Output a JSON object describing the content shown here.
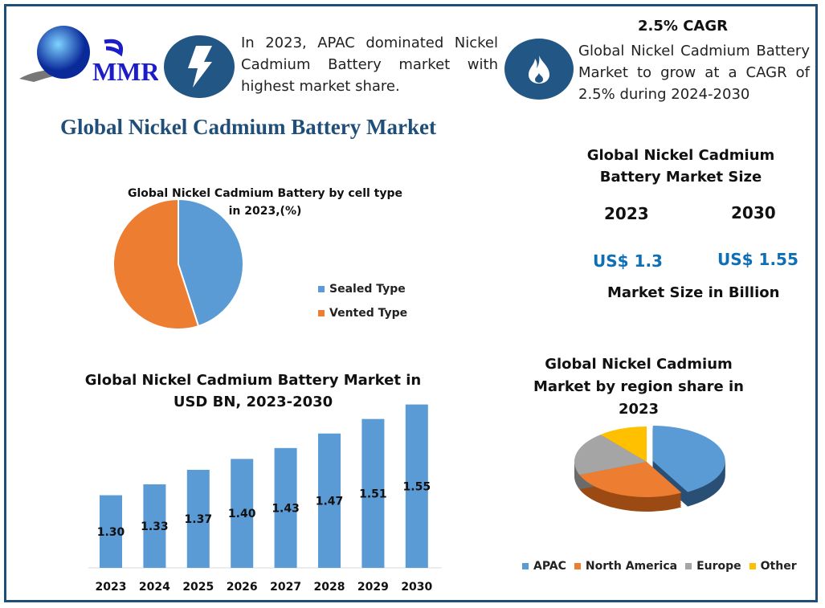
{
  "logo": {
    "text": "MMR"
  },
  "header": {
    "icon_left": "lightning-icon",
    "text_left": "In 2023, APAC dominated Nickel Cadmium Battery market with highest market share.",
    "icon_right": "flame-icon",
    "cagr_title": "2.5% CAGR",
    "text_right": "Global Nickel Cadmium Battery Market to grow at a CAGR of 2.5% during 2024-2030"
  },
  "title": "Global Nickel Cadmium Battery Market",
  "market_size": {
    "title": "Global Nickel Cadmium Battery Market Size",
    "year1": "2023",
    "year2": "2030",
    "value1": "US$ 1.3",
    "value2": "US$ 1.55",
    "unit": "Market Size in Billion"
  },
  "colors": {
    "blue": "#5b9bd5",
    "orange": "#ed7d31",
    "gray": "#a5a5a5",
    "yellow": "#ffc000",
    "navy": "#1f4e79"
  },
  "chart_data": [
    {
      "type": "pie",
      "title": "Global Nickel Cadmium Battery by cell type in 2023,(%)",
      "labels": [
        "Sealed Type",
        "Vented Type"
      ],
      "values": [
        45,
        55
      ],
      "colors": [
        "#5b9bd5",
        "#ed7d31"
      ],
      "legend": "right"
    },
    {
      "type": "bar",
      "title": "Global Nickel Cadmium Battery Market in USD BN, 2023-2030",
      "categories": [
        "2023",
        "2024",
        "2025",
        "2026",
        "2027",
        "2028",
        "2029",
        "2030"
      ],
      "values": [
        1.3,
        1.33,
        1.37,
        1.4,
        1.43,
        1.47,
        1.51,
        1.55
      ],
      "data_labels": [
        "1.30",
        "1.33",
        "1.37",
        "1.40",
        "1.43",
        "1.47",
        "1.51",
        "1.55"
      ],
      "ylim": [
        1.1,
        1.6
      ],
      "grid": false,
      "color": "#5b9bd5"
    },
    {
      "type": "pie",
      "title": "Global Nickel Cadmium Market by region share in 2023",
      "labels": [
        "APAC",
        "North America",
        "Europe",
        "Other"
      ],
      "values": [
        42,
        27,
        20,
        11
      ],
      "colors": [
        "#5b9bd5",
        "#ed7d31",
        "#a5a5a5",
        "#ffc000"
      ],
      "legend": "bottom",
      "style": "3d"
    }
  ]
}
